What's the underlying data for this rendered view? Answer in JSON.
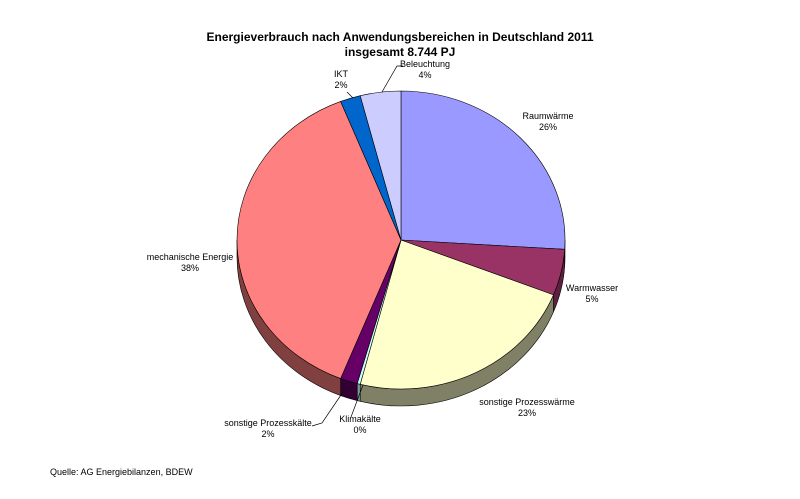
{
  "chart_data": {
    "type": "pie",
    "title": "Energieverbrauch nach Anwendungsbereichen in Deutschland 2011",
    "subtitle": "insgesamt 8.744 PJ",
    "three_d": true,
    "slices": [
      {
        "label": "Raumwärme",
        "value": 26,
        "value_label": "26%",
        "color": "#9999ff",
        "side_color": "#6060a8"
      },
      {
        "label": "Warmwasser",
        "value": 5,
        "value_label": "5%",
        "color": "#993366",
        "side_color": "#5e1f3f"
      },
      {
        "label": "sonstige Prozesswärme",
        "value": 23,
        "value_label": "23%",
        "color": "#ffffcc",
        "side_color": "#808066"
      },
      {
        "label": "Klimakälte",
        "value": 0.3,
        "value_label": "0%",
        "color": "#ccffff",
        "side_color": "#7a9999"
      },
      {
        "label": "sonstige Prozesskälte",
        "value": 1.7,
        "value_label": "2%",
        "color": "#660066",
        "side_color": "#330033"
      },
      {
        "label": "mechanische Energie",
        "value": 38,
        "value_label": "38%",
        "color": "#ff8080",
        "side_color": "#804040"
      },
      {
        "label": "IKT",
        "value": 2,
        "value_label": "2%",
        "color": "#0066cc",
        "side_color": "#003366"
      },
      {
        "label": "Beleuchtung",
        "value": 4,
        "value_label": "4%",
        "color": "#ccccff",
        "side_color": "#8080a0"
      }
    ]
  },
  "footer": {
    "source": "Quelle: AG Energiebilanzen, BDEW"
  }
}
